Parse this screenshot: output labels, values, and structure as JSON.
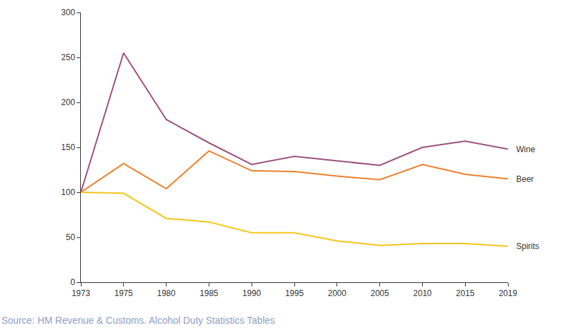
{
  "chart_data": {
    "type": "line",
    "categories": [
      "1973",
      "1975",
      "1980",
      "1985",
      "1990",
      "1995",
      "2000",
      "2005",
      "2010",
      "2015",
      "2019"
    ],
    "series": [
      {
        "name": "Wine",
        "color": "#9e4f7e",
        "values": [
          100,
          255,
          181,
          155,
          131,
          140,
          135,
          130,
          150,
          157,
          148
        ]
      },
      {
        "name": "Beer",
        "color": "#f07e26",
        "values": [
          100,
          132,
          104,
          146,
          124,
          123,
          118,
          114,
          131,
          120,
          115
        ]
      },
      {
        "name": "Spirits",
        "color": "#f5c518",
        "values": [
          100,
          99,
          71,
          67,
          55,
          55,
          46,
          41,
          43,
          43,
          40
        ]
      }
    ],
    "ylim": [
      0,
      300
    ],
    "yticks": [
      0,
      50,
      100,
      150,
      200,
      250,
      300
    ],
    "grid": false,
    "source": "Source: HM Revenue & Customs. Alcohol Duty Statistics Tables"
  }
}
